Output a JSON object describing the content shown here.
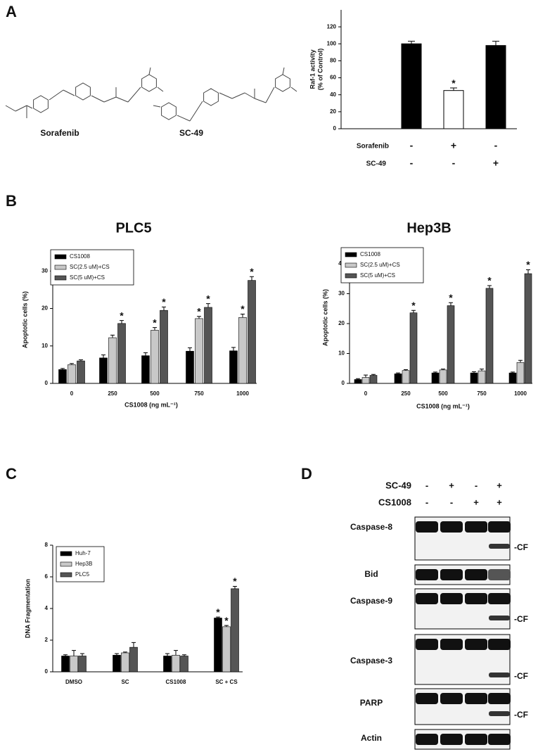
{
  "panel_labels": [
    "A",
    "B",
    "C",
    "D"
  ],
  "structures": [
    "Sorafenib",
    "SC-49"
  ],
  "chart_data": [
    {
      "type": "bar",
      "ylabel": [
        "Raf-1 activity",
        "(% of Control)"
      ],
      "values": [
        100,
        45,
        98
      ],
      "errors": [
        3,
        3,
        5
      ],
      "colors": [
        "#000000",
        "#ffffff",
        "#000000"
      ],
      "ylim": [
        0,
        140
      ],
      "yticks": [
        0,
        20,
        40,
        60,
        80,
        100,
        120
      ],
      "conditions": [
        {
          "name": "Sorafenib",
          "values": [
            "-",
            "+",
            "-"
          ]
        },
        {
          "name": "SC-49",
          "values": [
            "-",
            "-",
            "+"
          ]
        }
      ],
      "significance": {
        "label": "*",
        "marks": [
          1
        ]
      }
    },
    {
      "type": "grouped_bar",
      "title": "PLC5",
      "xlabel": "CS1008 (ng mL⁻¹)",
      "ylabel": [
        "Apoptotic cells (%)"
      ],
      "categories": [
        "0",
        "250",
        "500",
        "750",
        "1000"
      ],
      "series": [
        {
          "name": "CS1008",
          "color": "#000000",
          "values": [
            3.7,
            6.8,
            7.4,
            8.6,
            8.7
          ],
          "errors": [
            0.3,
            0.8,
            0.8,
            0.9,
            0.9
          ]
        },
        {
          "name": "SC(2.5 uM)+CS",
          "color": "#c8c8c8",
          "values": [
            5.0,
            12.2,
            14.2,
            17.3,
            17.6
          ],
          "errors": [
            0.3,
            0.7,
            0.7,
            0.6,
            0.9
          ]
        },
        {
          "name": "SC(5 uM)+CS",
          "color": "#555555",
          "values": [
            6.0,
            16.0,
            19.5,
            20.3,
            27.5
          ],
          "errors": [
            0.3,
            0.8,
            0.9,
            1.0,
            1.0
          ]
        }
      ],
      "ylim": [
        0,
        34
      ],
      "yticks": [
        0,
        10,
        20,
        30
      ],
      "significance": {
        "label": "*",
        "marks": [
          [
            2,
            1
          ],
          [
            1,
            2
          ],
          [
            2,
            2
          ],
          [
            1,
            3
          ],
          [
            2,
            3
          ],
          [
            1,
            4
          ],
          [
            2,
            4
          ]
        ]
      }
    },
    {
      "type": "grouped_bar",
      "title": "Hep3B",
      "xlabel": "CS1008 (ng mL⁻¹)",
      "ylabel": [
        "Apoptotic cells (%)"
      ],
      "categories": [
        "0",
        "250",
        "500",
        "750",
        "1000"
      ],
      "series": [
        {
          "name": "CS1008",
          "color": "#000000",
          "values": [
            1.3,
            3.2,
            3.5,
            3.5,
            3.5
          ],
          "errors": [
            0.3,
            0.3,
            0.3,
            0.4,
            0.3
          ]
        },
        {
          "name": "SC(2.5 uM)+CS",
          "color": "#c8c8c8",
          "values": [
            2.0,
            4.3,
            4.5,
            4.2,
            7.0
          ],
          "errors": [
            0.8,
            0.3,
            0.3,
            0.6,
            0.7
          ]
        },
        {
          "name": "SC(5 uM)+CS",
          "color": "#555555",
          "values": [
            2.7,
            23.6,
            26.0,
            31.8,
            36.7
          ],
          "errors": [
            0.3,
            0.8,
            1.0,
            0.9,
            1.3
          ]
        }
      ],
      "ylim": [
        0,
        44
      ],
      "yticks": [
        0,
        10,
        20,
        30,
        40
      ],
      "significance": {
        "label": "*",
        "marks": [
          [
            2,
            1
          ],
          [
            2,
            2
          ],
          [
            2,
            3
          ],
          [
            2,
            4
          ]
        ]
      }
    },
    {
      "type": "grouped_bar",
      "ylabel": [
        "DNA Fragmentation"
      ],
      "categories": [
        "DMSO",
        "SC",
        "CS1008",
        "SC + CS"
      ],
      "series": [
        {
          "name": "Huh-7",
          "color": "#000000",
          "values": [
            1.0,
            1.05,
            1.0,
            3.4
          ],
          "errors": [
            0.08,
            0.1,
            0.15,
            0.06
          ]
        },
        {
          "name": "Hep3B",
          "color": "#c8c8c8",
          "values": [
            1.0,
            1.2,
            1.05,
            2.85
          ],
          "errors": [
            0.35,
            0.05,
            0.3,
            0.08
          ]
        },
        {
          "name": "PLC5",
          "color": "#555555",
          "values": [
            1.0,
            1.55,
            1.0,
            5.25
          ],
          "errors": [
            0.15,
            0.3,
            0.08,
            0.15
          ]
        }
      ],
      "ylim": [
        0,
        8
      ],
      "yticks": [
        0,
        2,
        4,
        6,
        8
      ],
      "significance": {
        "label": "*",
        "marks": [
          [
            0,
            3
          ],
          [
            1,
            3
          ],
          [
            2,
            3
          ]
        ]
      }
    }
  ],
  "blot": {
    "treatments": [
      {
        "name": "SC-49",
        "values": [
          "-",
          "+",
          "-",
          "+"
        ]
      },
      {
        "name": "CS1008",
        "values": [
          "-",
          "-",
          "+",
          "+"
        ]
      }
    ],
    "rows": [
      {
        "label": "Caspase-8",
        "cleaved": "-CF"
      },
      {
        "label": "Bid"
      },
      {
        "label": "Caspase-9",
        "cleaved": "-CF"
      },
      {
        "label": "Caspase-3",
        "cleaved": "-CF"
      },
      {
        "label": "PARP",
        "cleaved": "-CF"
      },
      {
        "label": "Actin"
      }
    ]
  }
}
